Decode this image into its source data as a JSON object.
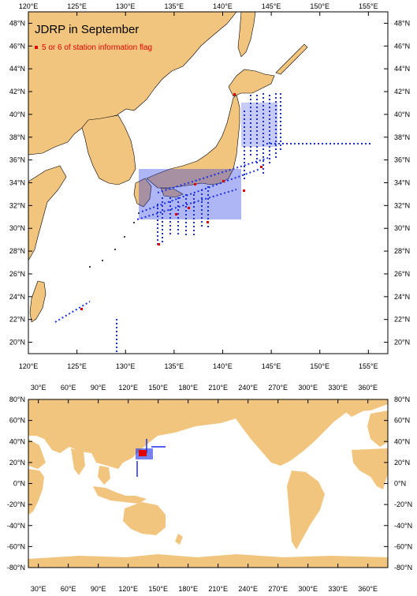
{
  "title": "JDRP in September",
  "legend": {
    "label": "5 or 6 of station information flag",
    "color": "#e00000"
  },
  "colors": {
    "land": "#f2c57f",
    "ocean": "#ffffff",
    "station": "#1a2fe6",
    "flagged": "#e00000"
  },
  "top_map": {
    "lon_labels": [
      "120°E",
      "125°E",
      "130°E",
      "135°E",
      "140°E",
      "145°E",
      "150°E",
      "155°E"
    ],
    "lat_labels": [
      "20°N",
      "22°N",
      "24°N",
      "26°N",
      "28°N",
      "30°N",
      "32°N",
      "34°N",
      "36°N",
      "38°N",
      "40°N",
      "42°N",
      "44°N",
      "46°N",
      "48°N"
    ]
  },
  "bottom_map": {
    "lon_labels": [
      "30°E",
      "60°E",
      "90°E",
      "120°E",
      "150°E",
      "180°E",
      "210°E",
      "240°E",
      "270°E",
      "300°E",
      "330°E",
      "360°E"
    ],
    "lat_labels": [
      "80°N",
      "60°N",
      "40°N",
      "20°N",
      "0°N",
      "-20°N",
      "-40°N",
      "-60°N",
      "-80°N"
    ]
  }
}
